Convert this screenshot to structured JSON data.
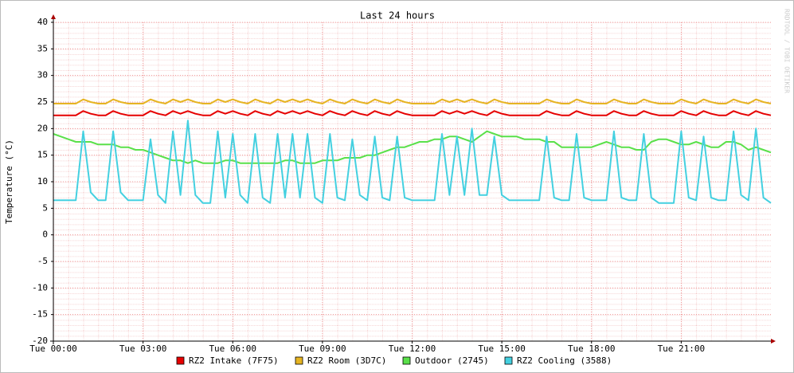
{
  "chart_data": {
    "type": "line",
    "title": "Last 24 hours",
    "ylabel": "Temperature (°C)",
    "watermark": "RRDTOOL / TOBI OETIKER",
    "xlim": [
      0,
      24
    ],
    "xticks": [
      {
        "value": 0,
        "label": "Tue 00:00"
      },
      {
        "value": 3,
        "label": "Tue 03:00"
      },
      {
        "value": 6,
        "label": "Tue 06:00"
      },
      {
        "value": 9,
        "label": "Tue 09:00"
      },
      {
        "value": 12,
        "label": "Tue 12:00"
      },
      {
        "value": 15,
        "label": "Tue 15:00"
      },
      {
        "value": 18,
        "label": "Tue 18:00"
      },
      {
        "value": 21,
        "label": "Tue 21:00"
      }
    ],
    "ylim": [
      -20,
      40
    ],
    "yticks": [
      -20,
      -15,
      -10,
      -5,
      0,
      5,
      10,
      15,
      20,
      25,
      30,
      35,
      40
    ],
    "grid": true,
    "x": [
      0,
      0.25,
      0.5,
      0.75,
      1,
      1.25,
      1.5,
      1.75,
      2,
      2.25,
      2.5,
      2.75,
      3,
      3.25,
      3.5,
      3.75,
      4,
      4.25,
      4.5,
      4.75,
      5,
      5.25,
      5.5,
      5.75,
      6,
      6.25,
      6.5,
      6.75,
      7,
      7.25,
      7.5,
      7.75,
      8,
      8.25,
      8.5,
      8.75,
      9,
      9.25,
      9.5,
      9.75,
      10,
      10.25,
      10.5,
      10.75,
      11,
      11.25,
      11.5,
      11.75,
      12,
      12.25,
      12.5,
      12.75,
      13,
      13.25,
      13.5,
      13.75,
      14,
      14.25,
      14.5,
      14.75,
      15,
      15.25,
      15.5,
      15.75,
      16,
      16.25,
      16.5,
      16.75,
      17,
      17.25,
      17.5,
      17.75,
      18,
      18.25,
      18.5,
      18.75,
      19,
      19.25,
      19.5,
      19.75,
      20,
      20.25,
      20.5,
      20.75,
      21,
      21.25,
      21.5,
      21.75,
      22,
      22.25,
      22.5,
      22.75,
      23,
      23.25,
      23.5,
      23.75,
      24
    ],
    "series": [
      {
        "name": "RZ2 Intake (7F75)",
        "color": "#e60000",
        "values": [
          22.5,
          22.5,
          22.5,
          22.5,
          23.3,
          22.8,
          22.5,
          22.5,
          23.3,
          22.8,
          22.5,
          22.5,
          22.5,
          23.3,
          22.8,
          22.5,
          23.3,
          22.8,
          23.3,
          22.8,
          22.5,
          22.5,
          23.3,
          22.8,
          23.3,
          22.8,
          22.5,
          23.3,
          22.8,
          22.5,
          23.3,
          22.8,
          23.3,
          22.8,
          23.3,
          22.8,
          22.5,
          23.3,
          22.8,
          22.5,
          23.3,
          22.8,
          22.5,
          23.3,
          22.8,
          22.5,
          23.3,
          22.8,
          22.5,
          22.5,
          22.5,
          22.5,
          23.3,
          22.8,
          23.3,
          22.8,
          23.3,
          22.8,
          22.5,
          23.3,
          22.8,
          22.5,
          22.5,
          22.5,
          22.5,
          22.5,
          23.3,
          22.8,
          22.5,
          22.5,
          23.3,
          22.8,
          22.5,
          22.5,
          22.5,
          23.3,
          22.8,
          22.5,
          22.5,
          23.3,
          22.8,
          22.5,
          22.5,
          22.5,
          23.3,
          22.8,
          22.5,
          23.3,
          22.8,
          22.5,
          22.5,
          23.3,
          22.8,
          22.5,
          23.3,
          22.8,
          22.5
        ]
      },
      {
        "name": "RZ2 Room (3D7C)",
        "color": "#e6b422",
        "values": [
          24.7,
          24.7,
          24.7,
          24.7,
          25.5,
          25,
          24.7,
          24.7,
          25.5,
          25,
          24.7,
          24.7,
          24.7,
          25.5,
          25,
          24.7,
          25.5,
          25,
          25.5,
          25,
          24.7,
          24.7,
          25.5,
          25,
          25.5,
          25,
          24.7,
          25.5,
          25,
          24.7,
          25.5,
          25,
          25.5,
          25,
          25.5,
          25,
          24.7,
          25.5,
          25,
          24.7,
          25.5,
          25,
          24.7,
          25.5,
          25,
          24.7,
          25.5,
          25,
          24.7,
          24.7,
          24.7,
          24.7,
          25.5,
          25,
          25.5,
          25,
          25.5,
          25,
          24.7,
          25.5,
          25,
          24.7,
          24.7,
          24.7,
          24.7,
          24.7,
          25.5,
          25,
          24.7,
          24.7,
          25.5,
          25,
          24.7,
          24.7,
          24.7,
          25.5,
          25,
          24.7,
          24.7,
          25.5,
          25,
          24.7,
          24.7,
          24.7,
          25.5,
          25,
          24.7,
          25.5,
          25,
          24.7,
          24.7,
          25.5,
          25,
          24.7,
          25.5,
          25,
          24.7
        ]
      },
      {
        "name": "Outdoor (2745)",
        "color": "#5ae04a",
        "values": [
          19,
          18.5,
          18,
          17.5,
          17.5,
          17.5,
          17,
          17,
          17,
          16.5,
          16.5,
          16,
          16,
          15.5,
          15,
          14.5,
          14,
          14,
          13.5,
          14,
          13.5,
          13.5,
          13.5,
          14,
          14,
          13.5,
          13.5,
          13.5,
          13.5,
          13.5,
          13.5,
          14,
          14,
          13.5,
          13.5,
          13.5,
          14,
          14,
          14,
          14.5,
          14.5,
          14.5,
          15,
          15,
          15.5,
          16,
          16.5,
          16.5,
          17,
          17.5,
          17.5,
          18,
          18,
          18.5,
          18.5,
          18,
          17.5,
          18.5,
          19.5,
          19,
          18.5,
          18.5,
          18.5,
          18,
          18,
          18,
          17.5,
          17.5,
          16.5,
          16.5,
          16.5,
          16.5,
          16.5,
          17,
          17.5,
          17,
          16.5,
          16.5,
          16,
          16,
          17.5,
          18,
          18,
          17.5,
          17,
          17,
          17.5,
          17,
          16.5,
          16.5,
          17.5,
          17.5,
          17,
          16,
          16.5,
          16,
          15.5
        ]
      },
      {
        "name": "RZ2 Cooling (3588)",
        "color": "#44d0e0",
        "values": [
          6.5,
          6.5,
          6.5,
          6.5,
          19.5,
          8,
          6.5,
          6.5,
          19.5,
          8,
          6.5,
          6.5,
          6.5,
          18,
          7.5,
          6,
          19.5,
          7.5,
          21.5,
          7.5,
          6,
          6,
          19.5,
          7,
          19,
          7.5,
          6,
          19,
          7,
          6,
          19,
          7,
          19,
          7,
          19,
          7,
          6,
          19,
          7,
          6.5,
          18,
          7.5,
          6.5,
          18.5,
          7,
          6.5,
          18.5,
          7,
          6.5,
          6.5,
          6.5,
          6.5,
          19,
          7.5,
          18.5,
          7.5,
          20,
          7.5,
          7.5,
          18.5,
          7.5,
          6.5,
          6.5,
          6.5,
          6.5,
          6.5,
          18.5,
          7,
          6.5,
          6.5,
          19,
          7,
          6.5,
          6.5,
          6.5,
          19.5,
          7,
          6.5,
          6.5,
          19,
          7,
          6,
          6,
          6,
          19.5,
          7,
          6.5,
          18.5,
          7,
          6.5,
          6.5,
          19.5,
          7.5,
          6.5,
          20,
          7,
          6
        ]
      }
    ]
  }
}
